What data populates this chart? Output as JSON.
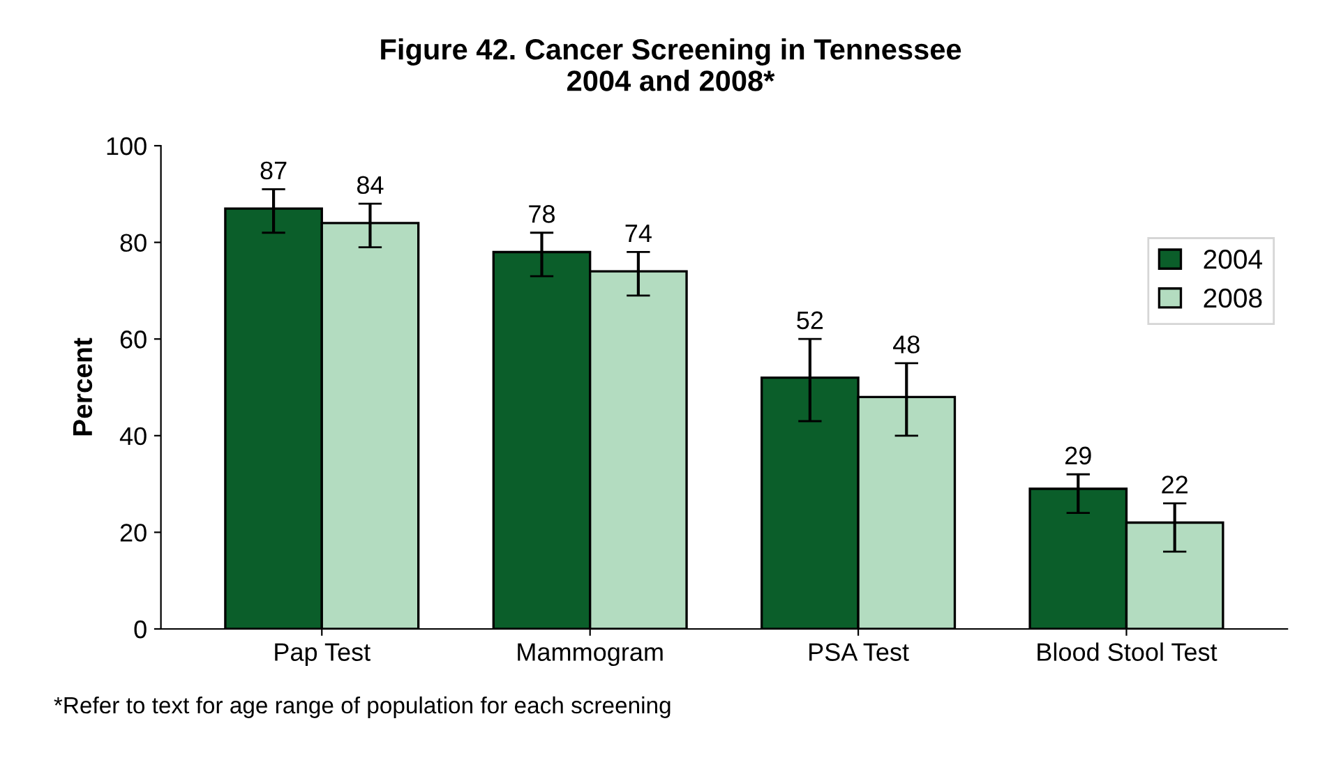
{
  "chart_data": {
    "type": "bar",
    "title": "Figure 42. Cancer Screening in Tennessee\n2004 and 2008*",
    "ylabel": "Percent",
    "categories": [
      "Pap Test",
      "Mammogram",
      "PSA Test",
      "Blood Stool Test"
    ],
    "series": [
      {
        "name": "2004",
        "color": "#0b5e2a",
        "values": [
          87,
          78,
          52,
          29
        ],
        "errors": [
          [
            82,
            91
          ],
          [
            73,
            82
          ],
          [
            43,
            60
          ],
          [
            24,
            32
          ]
        ]
      },
      {
        "name": "2008",
        "color": "#b3dcc0",
        "values": [
          84,
          74,
          48,
          22
        ],
        "errors": [
          [
            79,
            88
          ],
          [
            69,
            78
          ],
          [
            40,
            55
          ],
          [
            16,
            26
          ]
        ]
      }
    ],
    "ylim": [
      0,
      100
    ],
    "yticks": [
      0,
      20,
      40,
      60,
      80,
      100
    ],
    "data_labels": true,
    "legend": "right",
    "grid": false,
    "annotations": [
      "*Refer to text for age range of population for each screening"
    ]
  }
}
